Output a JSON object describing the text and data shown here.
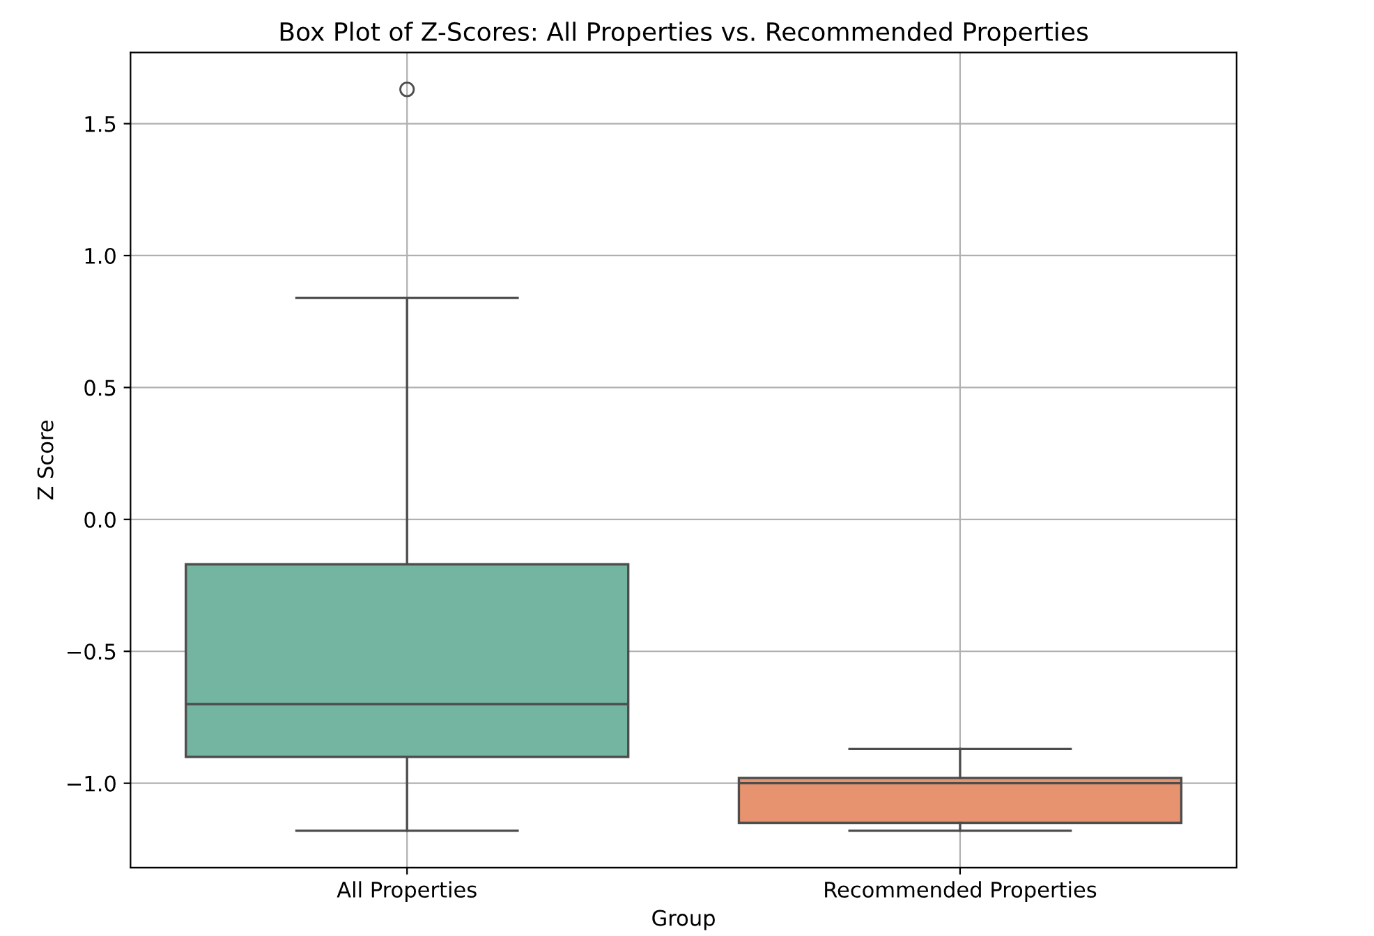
{
  "chart_data": {
    "type": "box",
    "title": "Box Plot of Z-Scores: All Properties vs. Recommended Properties",
    "xlabel": "Group",
    "ylabel": "Z Score",
    "categories": [
      "All Properties",
      "Recommended Properties"
    ],
    "colors": [
      "#73b5a1",
      "#e8936f"
    ],
    "boxes": [
      {
        "low": -1.18,
        "q1": -0.9,
        "median": -0.7,
        "q3": -0.17,
        "high": 0.84,
        "outliers": [
          1.63
        ]
      },
      {
        "low": -1.18,
        "q1": -1.15,
        "median": -1.0,
        "q3": -0.98,
        "high": -0.87
      }
    ],
    "ylim": [
      -1.32,
      1.77
    ],
    "yticks": [
      {
        "value": -1.0,
        "label": "−1.0"
      },
      {
        "value": -0.5,
        "label": "−0.5"
      },
      {
        "value": 0.0,
        "label": "0.0"
      },
      {
        "value": 0.5,
        "label": "0.5"
      },
      {
        "value": 1.0,
        "label": "1.0"
      },
      {
        "value": 1.5,
        "label": "1.5"
      }
    ],
    "grid": true
  }
}
